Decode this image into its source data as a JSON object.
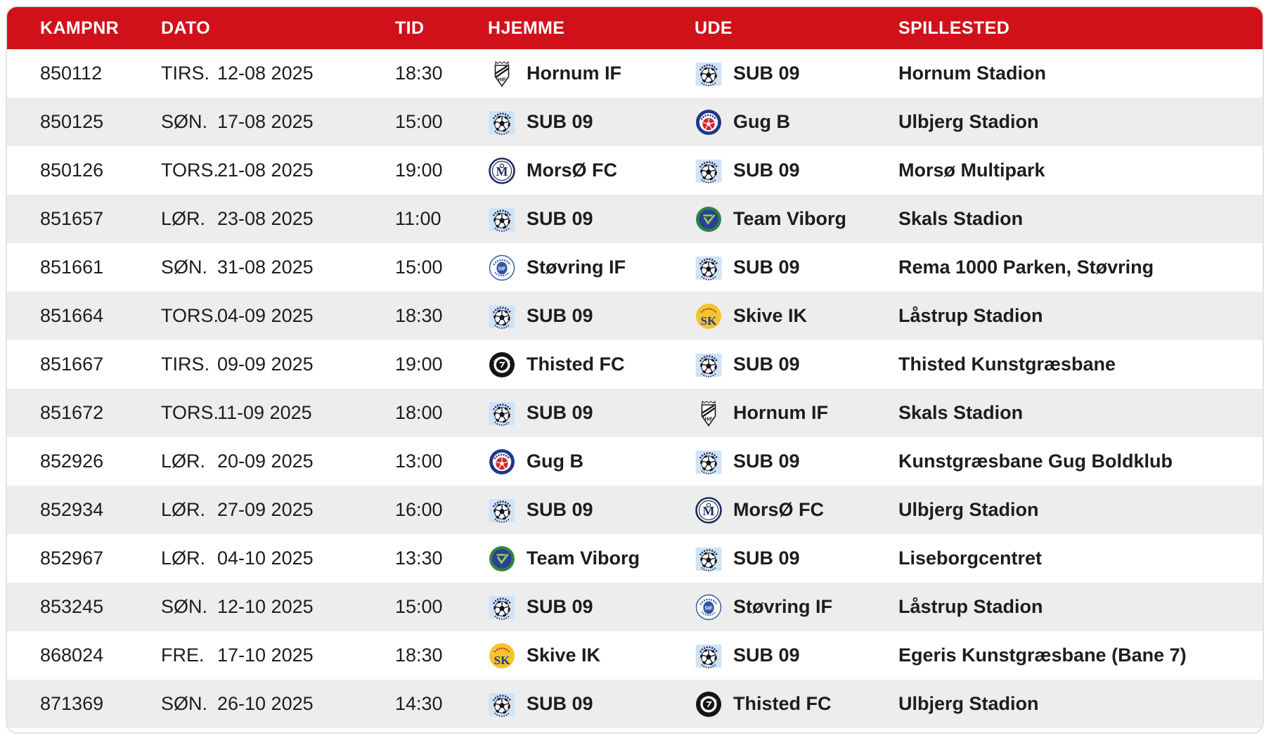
{
  "header": {
    "columns": [
      "KAMPNR",
      "DATO",
      "TID",
      "HJEMME",
      "UDE",
      "SPILLESTED"
    ]
  },
  "colors": {
    "header_bg": "#d1111a",
    "header_text": "#ffffff",
    "row_bg": "#ffffff",
    "row_alt_bg": "#ededed",
    "text": "#1d1d1b"
  },
  "teams": {
    "sub09": {
      "name": "SUB 09",
      "logo": "sub-09-logo",
      "colors": {
        "bg": "#cfe3f4",
        "ink": "#15151a",
        "text": "#1b2f6e"
      }
    },
    "hornum": {
      "name": "Hornum IF",
      "logo": "hornum-if-logo",
      "colors": {
        "bg": "#ffffff",
        "ink": "#1a1a1a"
      }
    },
    "gug": {
      "name": "Gug B",
      "logo": "gug-b-logo",
      "colors": {
        "outer": "#20368c",
        "ball": "#d8232a",
        "bg": "#ffffff"
      }
    },
    "morso": {
      "name": "MorsØ FC",
      "logo": "morso-fc-logo",
      "colors": {
        "ring": "#1d2b5e",
        "bg": "#ffffff"
      }
    },
    "viborg": {
      "name": "Team Viborg",
      "logo": "team-viborg-logo",
      "colors": {
        "outer": "#2e8442",
        "inner": "#2c3f97",
        "mark": "#8fd14f"
      }
    },
    "stovring": {
      "name": "Støvring IF",
      "logo": "stovring-if-logo",
      "colors": {
        "blue": "#2f55a4",
        "bg": "#ffffff"
      }
    },
    "skive": {
      "name": "Skive IK",
      "logo": "skive-ik-logo",
      "colors": {
        "gold": "#f3c52d",
        "navy": "#1c3a8c",
        "red": "#c6242b"
      }
    },
    "thisted": {
      "name": "Thisted FC",
      "logo": "thisted-fc-logo",
      "colors": {
        "ink": "#141414",
        "bg": "#ffffff"
      }
    }
  },
  "table": {
    "rows": [
      {
        "kampnr": "850112",
        "day": "TIRS.",
        "date": "12-08 2025",
        "time": "18:30",
        "home": "hornum",
        "away": "sub09",
        "venue": "Hornum Stadion"
      },
      {
        "kampnr": "850125",
        "day": "SØN.",
        "date": "17-08 2025",
        "time": "15:00",
        "home": "sub09",
        "away": "gug",
        "venue": "Ulbjerg Stadion"
      },
      {
        "kampnr": "850126",
        "day": "TORS.",
        "date": "21-08 2025",
        "time": "19:00",
        "home": "morso",
        "away": "sub09",
        "venue": "Morsø Multipark"
      },
      {
        "kampnr": "851657",
        "day": "LØR.",
        "date": "23-08 2025",
        "time": "11:00",
        "home": "sub09",
        "away": "viborg",
        "venue": "Skals Stadion"
      },
      {
        "kampnr": "851661",
        "day": "SØN.",
        "date": "31-08 2025",
        "time": "15:00",
        "home": "stovring",
        "away": "sub09",
        "venue": "Rema 1000 Parken, Støvring"
      },
      {
        "kampnr": "851664",
        "day": "TORS.",
        "date": "04-09 2025",
        "time": "18:30",
        "home": "sub09",
        "away": "skive",
        "venue": "Låstrup Stadion"
      },
      {
        "kampnr": "851667",
        "day": "TIRS.",
        "date": "09-09 2025",
        "time": "19:00",
        "home": "thisted",
        "away": "sub09",
        "venue": "Thisted Kunstgræsbane"
      },
      {
        "kampnr": "851672",
        "day": "TORS.",
        "date": "11-09 2025",
        "time": "18:00",
        "home": "sub09",
        "away": "hornum",
        "venue": "Skals Stadion"
      },
      {
        "kampnr": "852926",
        "day": "LØR.",
        "date": "20-09 2025",
        "time": "13:00",
        "home": "gug",
        "away": "sub09",
        "venue": "Kunstgræsbane Gug Boldklub"
      },
      {
        "kampnr": "852934",
        "day": "LØR.",
        "date": "27-09 2025",
        "time": "16:00",
        "home": "sub09",
        "away": "morso",
        "venue": "Ulbjerg Stadion"
      },
      {
        "kampnr": "852967",
        "day": "LØR.",
        "date": "04-10 2025",
        "time": "13:30",
        "home": "viborg",
        "away": "sub09",
        "venue": "Liseborgcentret"
      },
      {
        "kampnr": "853245",
        "day": "SØN.",
        "date": "12-10 2025",
        "time": "15:00",
        "home": "sub09",
        "away": "stovring",
        "venue": "Låstrup Stadion"
      },
      {
        "kampnr": "868024",
        "day": "FRE.",
        "date": "17-10 2025",
        "time": "18:30",
        "home": "skive",
        "away": "sub09",
        "venue": "Egeris Kunstgræsbane (Bane 7)"
      },
      {
        "kampnr": "871369",
        "day": "SØN.",
        "date": "26-10 2025",
        "time": "14:30",
        "home": "sub09",
        "away": "thisted",
        "venue": "Ulbjerg Stadion"
      }
    ]
  }
}
